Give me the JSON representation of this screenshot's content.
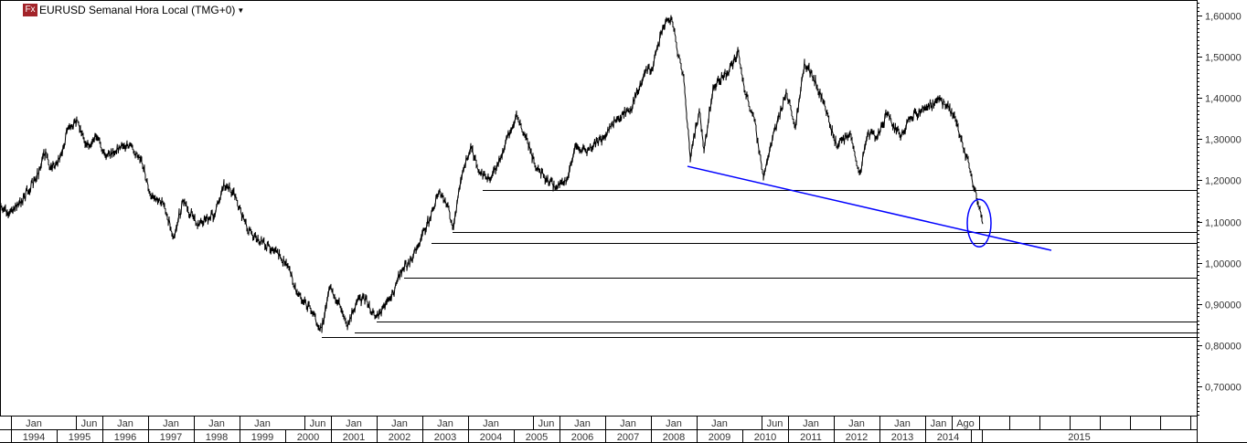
{
  "header": {
    "title": "EURUSD Semanal Hora Local (TMG+0)",
    "logo": "Fx",
    "dropdown_icon": "caret-down-icon",
    "logo_color": "#a3242a"
  },
  "chart_data": {
    "type": "line",
    "title": "EURUSD Semanal Hora Local (TMG+0)",
    "xlabel": "",
    "ylabel": "",
    "ylim": [
      0.62,
      1.64
    ],
    "xlim": [
      1993.76,
      2019.7
    ],
    "grid": false,
    "y_ticks": [
      "1,60000",
      "1,50000",
      "1,40000",
      "1,30000",
      "1,20000",
      "1,10000",
      "1,00000",
      "0,90000",
      "0,80000",
      "0,70000"
    ],
    "y_tick_values": [
      1.6,
      1.5,
      1.4,
      1.3,
      1.2,
      1.1,
      1.0,
      0.9,
      0.8,
      0.7
    ],
    "x_top_labels": [
      {
        "t": 1994.0,
        "label": "Jan"
      },
      {
        "t": 1995.42,
        "label": "Jun"
      },
      {
        "t": 1996.0,
        "label": "Jan"
      },
      {
        "t": 1997.0,
        "label": "Jan"
      },
      {
        "t": 1998.0,
        "label": "Jan"
      },
      {
        "t": 1999.0,
        "label": "Jan"
      },
      {
        "t": 2000.42,
        "label": "Jun"
      },
      {
        "t": 2001.0,
        "label": "Jan"
      },
      {
        "t": 2002.0,
        "label": "Jan"
      },
      {
        "t": 2003.0,
        "label": "Jan"
      },
      {
        "t": 2004.0,
        "label": "Jan"
      },
      {
        "t": 2005.42,
        "label": "Jun"
      },
      {
        "t": 2006.0,
        "label": "Jan"
      },
      {
        "t": 2007.0,
        "label": "Jan"
      },
      {
        "t": 2008.0,
        "label": "Jan"
      },
      {
        "t": 2009.0,
        "label": "Jan"
      },
      {
        "t": 2010.42,
        "label": "Jun"
      },
      {
        "t": 2011.0,
        "label": "Jan"
      },
      {
        "t": 2012.0,
        "label": "Jan"
      },
      {
        "t": 2013.0,
        "label": "Jan"
      },
      {
        "t": 2014.0,
        "label": "Jan"
      },
      {
        "t": 2014.58,
        "label": "Ago"
      }
    ],
    "x_year_labels": [
      "1994",
      "1995",
      "1996",
      "1997",
      "1998",
      "1999",
      "2000",
      "2001",
      "2002",
      "2003",
      "2004",
      "2005",
      "2006",
      "2007",
      "2008",
      "2009",
      "2010",
      "2011",
      "2012",
      "2013",
      "2014",
      "2015"
    ],
    "series": [
      {
        "color": "#000000",
        "points": [
          [
            1993.76,
            1.139
          ],
          [
            1993.96,
            1.117
          ],
          [
            1994.16,
            1.139
          ],
          [
            1994.56,
            1.205
          ],
          [
            1994.76,
            1.272
          ],
          [
            1994.86,
            1.228
          ],
          [
            1995.06,
            1.25
          ],
          [
            1995.26,
            1.327
          ],
          [
            1995.46,
            1.343
          ],
          [
            1995.66,
            1.283
          ],
          [
            1995.86,
            1.305
          ],
          [
            1996.06,
            1.261
          ],
          [
            1996.46,
            1.283
          ],
          [
            1996.66,
            1.278
          ],
          [
            1996.86,
            1.25
          ],
          [
            1997.06,
            1.161
          ],
          [
            1997.36,
            1.139
          ],
          [
            1997.56,
            1.061
          ],
          [
            1997.76,
            1.15
          ],
          [
            1998.06,
            1.094
          ],
          [
            1998.46,
            1.117
          ],
          [
            1998.66,
            1.194
          ],
          [
            1998.86,
            1.172
          ],
          [
            1999.16,
            1.083
          ],
          [
            1999.46,
            1.05
          ],
          [
            1999.76,
            1.028
          ],
          [
            2000.06,
            0.995
          ],
          [
            2000.26,
            0.928
          ],
          [
            2000.56,
            0.884
          ],
          [
            2000.8,
            0.835
          ],
          [
            2000.96,
            0.939
          ],
          [
            2001.16,
            0.906
          ],
          [
            2001.36,
            0.844
          ],
          [
            2001.56,
            0.906
          ],
          [
            2001.76,
            0.917
          ],
          [
            2001.96,
            0.866
          ],
          [
            2002.16,
            0.895
          ],
          [
            2002.36,
            0.928
          ],
          [
            2002.56,
            0.984
          ],
          [
            2002.76,
            1.006
          ],
          [
            2003.0,
            1.072
          ],
          [
            2003.16,
            1.106
          ],
          [
            2003.36,
            1.172
          ],
          [
            2003.56,
            1.139
          ],
          [
            2003.66,
            1.083
          ],
          [
            2003.86,
            1.205
          ],
          [
            2004.06,
            1.283
          ],
          [
            2004.26,
            1.216
          ],
          [
            2004.46,
            1.205
          ],
          [
            2004.66,
            1.239
          ],
          [
            2004.86,
            1.305
          ],
          [
            2005.06,
            1.361
          ],
          [
            2005.26,
            1.305
          ],
          [
            2005.46,
            1.239
          ],
          [
            2005.76,
            1.194
          ],
          [
            2005.96,
            1.183
          ],
          [
            2006.16,
            1.205
          ],
          [
            2006.36,
            1.283
          ],
          [
            2006.56,
            1.272
          ],
          [
            2006.96,
            1.305
          ],
          [
            2007.16,
            1.338
          ],
          [
            2007.56,
            1.372
          ],
          [
            2007.86,
            1.46
          ],
          [
            2008.06,
            1.482
          ],
          [
            2008.26,
            1.571
          ],
          [
            2008.46,
            1.593
          ],
          [
            2008.56,
            1.527
          ],
          [
            2008.72,
            1.449
          ],
          [
            2008.86,
            1.25
          ],
          [
            2009.06,
            1.372
          ],
          [
            2009.16,
            1.272
          ],
          [
            2009.36,
            1.427
          ],
          [
            2009.66,
            1.46
          ],
          [
            2009.92,
            1.509
          ],
          [
            2010.06,
            1.416
          ],
          [
            2010.26,
            1.349
          ],
          [
            2010.46,
            1.205
          ],
          [
            2010.66,
            1.305
          ],
          [
            2010.86,
            1.372
          ],
          [
            2010.96,
            1.416
          ],
          [
            2011.16,
            1.327
          ],
          [
            2011.36,
            1.487
          ],
          [
            2011.56,
            1.449
          ],
          [
            2011.76,
            1.394
          ],
          [
            2012.06,
            1.283
          ],
          [
            2012.36,
            1.316
          ],
          [
            2012.56,
            1.216
          ],
          [
            2012.76,
            1.316
          ],
          [
            2012.96,
            1.305
          ],
          [
            2013.16,
            1.361
          ],
          [
            2013.46,
            1.305
          ],
          [
            2013.66,
            1.349
          ],
          [
            2013.96,
            1.372
          ],
          [
            2014.26,
            1.394
          ],
          [
            2014.46,
            1.383
          ],
          [
            2014.66,
            1.349
          ],
          [
            2014.86,
            1.272
          ],
          [
            2015.0,
            1.216
          ],
          [
            2015.12,
            1.161
          ],
          [
            2015.26,
            1.094
          ]
        ]
      }
    ],
    "support_lines": [
      {
        "from": 2004.32,
        "price": 1.176
      },
      {
        "from": 2003.66,
        "price": 1.074
      },
      {
        "from": 2003.2,
        "price": 1.048
      },
      {
        "from": 2002.6,
        "price": 0.964
      },
      {
        "from": 2002.0,
        "price": 0.857
      },
      {
        "from": 2001.52,
        "price": 0.831
      },
      {
        "from": 2000.8,
        "price": 0.82
      }
    ],
    "trendline": {
      "color": "#0000ff",
      "start": [
        2008.8,
        1.234
      ],
      "end": [
        2016.76,
        1.03
      ]
    },
    "highlight_ellipse": {
      "color": "#0000ff",
      "center": [
        2015.18,
        1.096
      ]
    }
  }
}
